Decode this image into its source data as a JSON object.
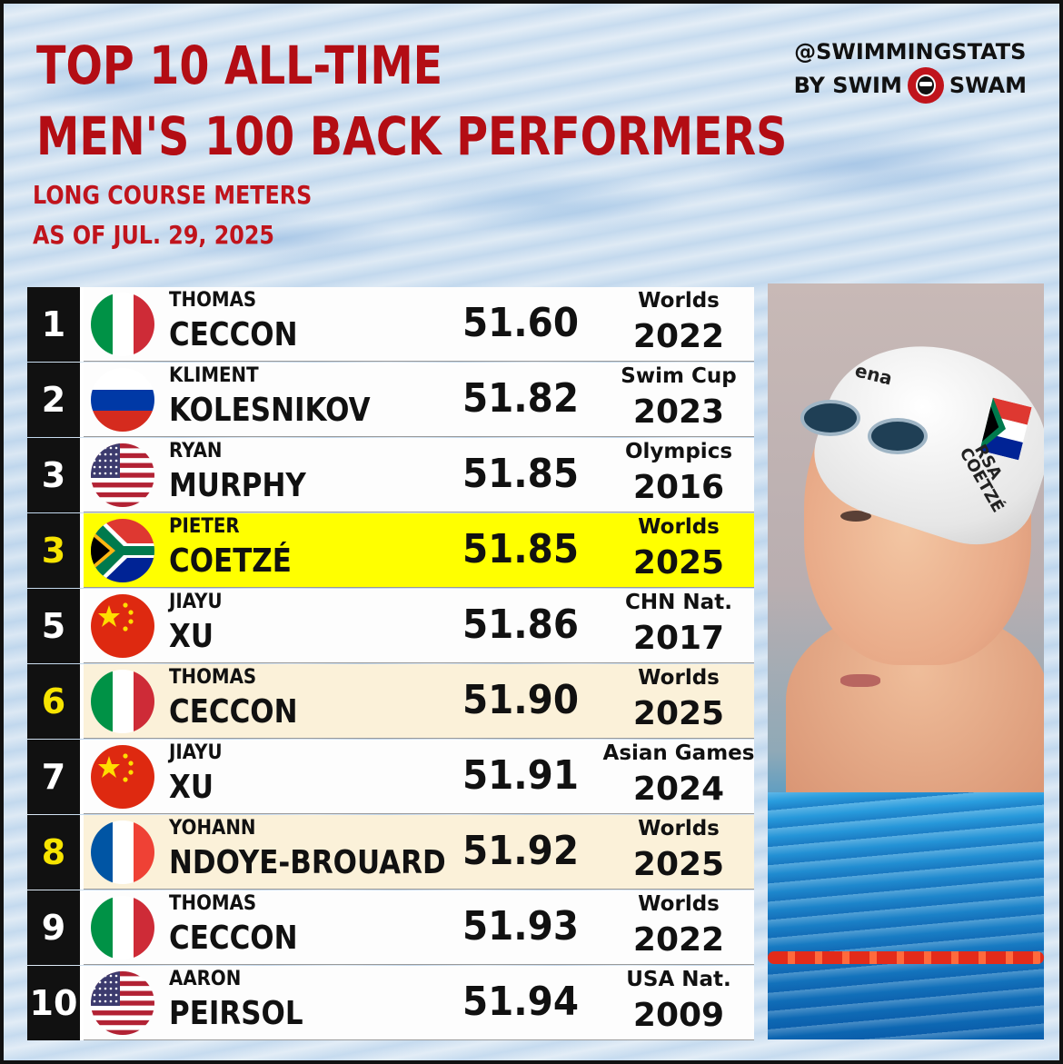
{
  "header": {
    "title_line1": "TOP 10 ALL-TIME",
    "title_line2": "MEN'S 100 BACK PERFORMERS",
    "subtitle_line1": "LONG COURSE METERS",
    "subtitle_line2": "AS OF JUL. 29, 2025"
  },
  "brand": {
    "handle": "@SWIMMINGSTATS",
    "by_left": "BY SWIM",
    "by_right": "SWAM"
  },
  "rows": [
    {
      "rank": "1",
      "first": "THOMAS",
      "last": "CECCON",
      "time": "51.60",
      "meet": "Worlds",
      "year": "2022",
      "flag": "italy-flag-icon",
      "style": "plain"
    },
    {
      "rank": "2",
      "first": "KLIMENT",
      "last": "KOLESNIKOV",
      "time": "51.82",
      "meet": "Swim Cup",
      "year": "2023",
      "flag": "russia-flag-icon",
      "style": "plain"
    },
    {
      "rank": "3",
      "first": "RYAN",
      "last": "MURPHY",
      "time": "51.85",
      "meet": "Olympics",
      "year": "2016",
      "flag": "usa-flag-icon",
      "style": "plain"
    },
    {
      "rank": "3",
      "first": "PIETER",
      "last": "COETZÉ",
      "time": "51.85",
      "meet": "Worlds",
      "year": "2025",
      "flag": "south-africa-flag-icon",
      "style": "yellow"
    },
    {
      "rank": "5",
      "first": "JIAYU",
      "last": "XU",
      "time": "51.86",
      "meet": "CHN Nat.",
      "year": "2017",
      "flag": "china-flag-icon",
      "style": "plain"
    },
    {
      "rank": "6",
      "first": "THOMAS",
      "last": "CECCON",
      "time": "51.90",
      "meet": "Worlds",
      "year": "2025",
      "flag": "italy-flag-icon",
      "style": "alt"
    },
    {
      "rank": "7",
      "first": "JIAYU",
      "last": "XU",
      "time": "51.91",
      "meet": "Asian Games",
      "year": "2024",
      "flag": "china-flag-icon",
      "style": "plain"
    },
    {
      "rank": "8",
      "first": "YOHANN",
      "last": "NDOYE-BROUARD",
      "time": "51.92",
      "meet": "Worlds",
      "year": "2025",
      "flag": "france-flag-icon",
      "style": "alt"
    },
    {
      "rank": "9",
      "first": "THOMAS",
      "last": "CECCON",
      "time": "51.93",
      "meet": "Worlds",
      "year": "2022",
      "flag": "italy-flag-icon",
      "style": "plain"
    },
    {
      "rank": "10",
      "first": "AARON",
      "last": "PEIRSOL",
      "time": "51.94",
      "meet": "USA Nat.",
      "year": "2009",
      "flag": "usa-flag-icon",
      "style": "plain"
    }
  ],
  "photo": {
    "cap_brand": "ena",
    "cap_country": "RSA",
    "cap_name": "COETZÉ"
  },
  "colors": {
    "title_red": "#b30d14",
    "highlight_yellow": "#ffff00",
    "alt_row": "#fbf1d9",
    "rank_bg": "#111111",
    "rank_highlight_text": "#f7e400"
  }
}
